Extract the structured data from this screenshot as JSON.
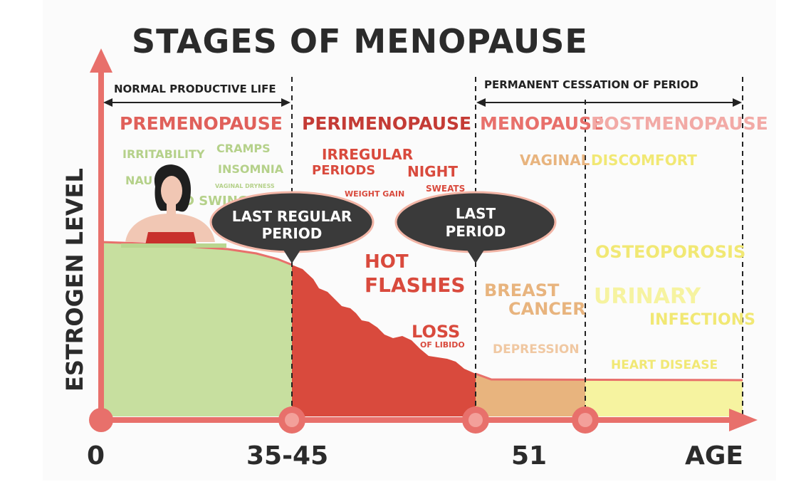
{
  "title": "STAGES OF MENOPAUSE",
  "y_axis_label": "ESTROGEN LEVEL",
  "x_axis": {
    "origin": "0",
    "mark1": "35-45",
    "mark2": "51",
    "end": "AGE"
  },
  "spans": {
    "left": "NORMAL PRODUCTIVE LIFE",
    "right": "PERMANENT CESSATION OF PERIOD"
  },
  "stages": {
    "premenopause": "PREMENOPAUSE",
    "perimenopause": "PERIMENOPAUSE",
    "menopause": "MENOPAUSE",
    "postmenopause": "POSTMENOPAUSE"
  },
  "callouts": {
    "last_regular_1": "LAST REGULAR",
    "last_regular_2": "PERIOD",
    "last_period_1": "LAST",
    "last_period_2": "PERIOD"
  },
  "symptoms": {
    "irritability": "IRRITABILITY",
    "cramps": "CRAMPS",
    "insomnia": "INSOMNIA",
    "nausea": "NAU",
    "vaginal_dryness": "VAGINAL DRYNESS",
    "mood_swings": "D SWINGS",
    "irregular": "IRREGULAR",
    "periods": "PERIODS",
    "night": "NIGHT",
    "sweats": "SWEATS",
    "weight_gain": "WEIGHT GAIN",
    "hot": "HOT",
    "flashes": "FLASHES",
    "loss": "LOSS",
    "of_libido": "OF LIBIDO",
    "vaginal": "VAGINAL",
    "discomfort": "DISCOMFORT",
    "osteoporosis": "OSTEOPOROSIS",
    "breast": "BREAST",
    "cancer": "CANCER",
    "urinary": "URINARY",
    "infections": "INFECTIONS",
    "depression": "DEPRESSION",
    "heart_disease": "HEART DISEASE"
  },
  "colors": {
    "axis": "#e8706b",
    "green": "#c7df9f",
    "red": "#d94a3d",
    "orange": "#e8b47e",
    "yellow": "#f6f3a0",
    "callout": "#3a3a3a",
    "title": "#2b2b2b"
  }
}
